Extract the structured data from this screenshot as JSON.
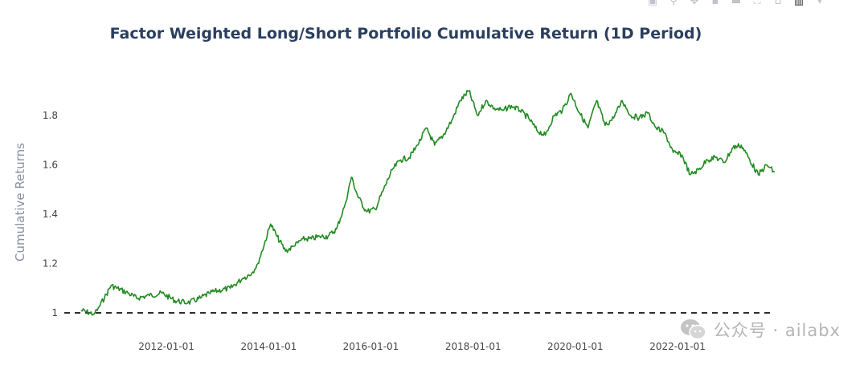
{
  "modebar": {
    "icons": [
      "camera-icon",
      "zoom-icon",
      "pan-icon",
      "zoom-in-icon",
      "zoom-out-icon",
      "autoscale-icon",
      "home-icon",
      "spikelines-icon",
      "toggle-hover-icon"
    ],
    "color": "#bfc4cc"
  },
  "watermark": {
    "text": "公众号 · ailabx",
    "icon": "wechat-icon"
  },
  "chart_data": {
    "type": "line",
    "title": "Factor Weighted Long/Short Portfolio Cumulative Return (1D Period)",
    "xlabel": "",
    "ylabel": "Cumulative Returns",
    "xlim": [
      "2010-01-01",
      "2023-12-31"
    ],
    "ylim": [
      1.0,
      1.93
    ],
    "x_ticks": [
      "2012-01-01",
      "2014-01-01",
      "2016-01-01",
      "2018-01-01",
      "2020-01-01",
      "2022-01-01"
    ],
    "y_ticks": [
      {
        "value": 1.0,
        "label": "1"
      },
      {
        "value": 1.2,
        "label": "1.2"
      },
      {
        "value": 1.4,
        "label": "1.4"
      },
      {
        "value": 1.6,
        "label": "1.6"
      },
      {
        "value": 1.8,
        "label": "1.8"
      }
    ],
    "grid": false,
    "reference_line": {
      "y": 1.0,
      "style": "dashed",
      "color": "#111111",
      "x_end": "2023-11-25"
    },
    "series": [
      {
        "color": "#228b22",
        "x": [
          "2010-05-01",
          "2010-06-01",
          "2010-08-01",
          "2010-09-01",
          "2010-10-15",
          "2010-12-01",
          "2011-01-15",
          "2011-04-01",
          "2011-06-01",
          "2011-09-01",
          "2011-12-01",
          "2012-03-01",
          "2012-06-01",
          "2012-09-01",
          "2012-11-01",
          "2013-01-01",
          "2013-04-01",
          "2013-07-01",
          "2013-09-01",
          "2013-10-15",
          "2013-12-01",
          "2014-01-15",
          "2014-03-01",
          "2014-05-01",
          "2014-07-01",
          "2014-09-01",
          "2014-11-01",
          "2015-01-01",
          "2015-03-01",
          "2015-05-01",
          "2015-07-01",
          "2015-08-15",
          "2015-10-01",
          "2015-12-01",
          "2016-02-01",
          "2016-04-01",
          "2016-06-01",
          "2016-08-01",
          "2016-10-01",
          "2016-12-01",
          "2017-02-01",
          "2017-04-01",
          "2017-06-01",
          "2017-08-01",
          "2017-10-01",
          "2017-12-01",
          "2018-02-01",
          "2018-04-01",
          "2018-06-01",
          "2018-08-01",
          "2018-10-01",
          "2018-12-01",
          "2019-02-01",
          "2019-04-01",
          "2019-06-01",
          "2019-08-01",
          "2019-10-01",
          "2019-12-01",
          "2020-02-01",
          "2020-04-01",
          "2020-06-01",
          "2020-08-01",
          "2020-10-01",
          "2020-12-01",
          "2021-02-01",
          "2021-04-01",
          "2021-06-01",
          "2021-08-01",
          "2021-10-01",
          "2021-12-01",
          "2022-02-01",
          "2022-04-01",
          "2022-06-01",
          "2022-08-01",
          "2022-10-01",
          "2022-12-01",
          "2023-02-01",
          "2023-04-01",
          "2023-06-01",
          "2023-08-01",
          "2023-10-01",
          "2023-11-25"
        ],
        "y": [
          1.01,
          1.005,
          0.995,
          1.02,
          1.06,
          1.11,
          1.1,
          1.08,
          1.06,
          1.07,
          1.08,
          1.05,
          1.04,
          1.06,
          1.08,
          1.09,
          1.1,
          1.14,
          1.16,
          1.2,
          1.28,
          1.36,
          1.31,
          1.25,
          1.27,
          1.3,
          1.3,
          1.31,
          1.31,
          1.34,
          1.44,
          1.55,
          1.47,
          1.41,
          1.42,
          1.5,
          1.58,
          1.62,
          1.63,
          1.68,
          1.75,
          1.68,
          1.72,
          1.78,
          1.86,
          1.9,
          1.8,
          1.86,
          1.83,
          1.82,
          1.84,
          1.82,
          1.79,
          1.74,
          1.72,
          1.8,
          1.82,
          1.89,
          1.81,
          1.75,
          1.86,
          1.76,
          1.79,
          1.86,
          1.8,
          1.79,
          1.81,
          1.75,
          1.73,
          1.65,
          1.64,
          1.56,
          1.58,
          1.62,
          1.63,
          1.61,
          1.67,
          1.68,
          1.62,
          1.56,
          1.6,
          1.57
        ]
      }
    ]
  }
}
